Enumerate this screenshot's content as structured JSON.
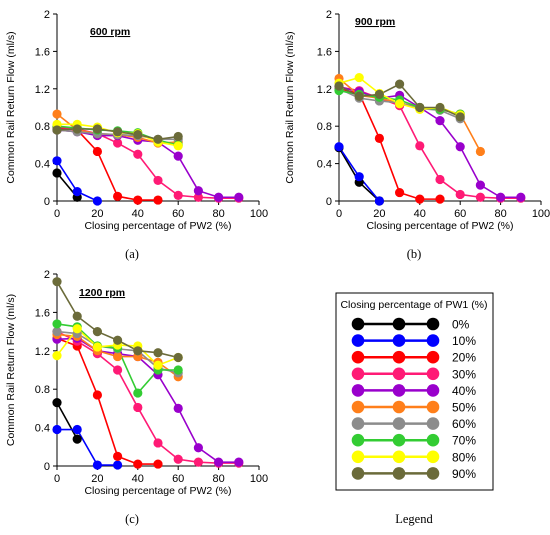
{
  "chart_data": [
    {
      "type": "line",
      "panel_label": "600 rpm",
      "caption": "(a)",
      "xlabel": "Closing percentage of PW2 (%)",
      "ylabel": "Common Rail Return Flow (ml/s)",
      "xlim": [
        0,
        100
      ],
      "ylim": [
        0,
        2
      ],
      "xticks": [
        "0",
        "20",
        "40",
        "60",
        "80",
        "100"
      ],
      "yticks": [
        "0",
        "0.4",
        "0.8",
        "1.2",
        "1.6",
        "2"
      ],
      "series": [
        {
          "name": "0%",
          "x": [
            0,
            10
          ],
          "y": [
            0.3,
            0.04
          ]
        },
        {
          "name": "10%",
          "x": [
            0,
            10,
            20
          ],
          "y": [
            0.43,
            0.1,
            0.0
          ]
        },
        {
          "name": "20%",
          "x": [
            0,
            10,
            20,
            30,
            40,
            50
          ],
          "y": [
            0.78,
            0.76,
            0.53,
            0.05,
            0.01,
            0.01
          ]
        },
        {
          "name": "30%",
          "x": [
            0,
            10,
            20,
            30,
            40,
            50,
            60,
            70,
            80,
            90
          ],
          "y": [
            0.79,
            0.77,
            0.72,
            0.62,
            0.5,
            0.22,
            0.06,
            0.04,
            0.03,
            0.03
          ]
        },
        {
          "name": "40%",
          "x": [
            0,
            10,
            20,
            30,
            40,
            50,
            60,
            70,
            80,
            90
          ],
          "y": [
            0.76,
            0.74,
            0.7,
            0.7,
            0.65,
            0.63,
            0.48,
            0.11,
            0.04,
            0.04
          ]
        },
        {
          "name": "50%",
          "x": [
            0,
            10,
            20,
            30,
            40,
            50,
            60
          ],
          "y": [
            0.93,
            0.76,
            0.72,
            0.71,
            0.68,
            0.62,
            0.63
          ]
        },
        {
          "name": "60%",
          "x": [
            0,
            10,
            20,
            30,
            40,
            50,
            60
          ],
          "y": [
            0.76,
            0.74,
            0.72,
            0.71,
            0.7,
            0.66,
            0.66
          ]
        },
        {
          "name": "70%",
          "x": [
            0,
            10,
            20,
            30,
            40,
            50,
            60
          ],
          "y": [
            0.8,
            0.78,
            0.76,
            0.75,
            0.73,
            0.65,
            0.6
          ]
        },
        {
          "name": "80%",
          "x": [
            0,
            10,
            20,
            30,
            40,
            50,
            60
          ],
          "y": [
            0.82,
            0.82,
            0.79,
            0.73,
            0.72,
            0.63,
            0.59
          ]
        },
        {
          "name": "90%",
          "x": [
            0,
            10,
            20,
            30,
            40,
            50,
            60
          ],
          "y": [
            0.76,
            0.77,
            0.77,
            0.74,
            0.71,
            0.66,
            0.69
          ]
        }
      ]
    },
    {
      "type": "line",
      "panel_label": "900 rpm",
      "caption": "(b)",
      "xlabel": "Closing percentage of PW2 (%)",
      "ylabel": "Common Rail Return Flow (ml/s)",
      "xlim": [
        0,
        100
      ],
      "ylim": [
        0,
        2
      ],
      "xticks": [
        "0",
        "20",
        "40",
        "60",
        "80",
        "100"
      ],
      "yticks": [
        "0",
        "0.4",
        "0.8",
        "1.2",
        "1.6",
        "2"
      ],
      "series": [
        {
          "name": "0%",
          "x": [
            0,
            10,
            20
          ],
          "y": [
            0.57,
            0.2,
            0.0
          ]
        },
        {
          "name": "10%",
          "x": [
            0,
            10,
            20
          ],
          "y": [
            0.58,
            0.26,
            0.0
          ]
        },
        {
          "name": "20%",
          "x": [
            0,
            10,
            20,
            30,
            40,
            50
          ],
          "y": [
            1.2,
            1.15,
            0.67,
            0.09,
            0.02,
            0.02
          ]
        },
        {
          "name": "30%",
          "x": [
            0,
            10,
            20,
            30,
            40,
            50,
            60,
            70,
            80,
            90
          ],
          "y": [
            1.22,
            1.18,
            1.1,
            1.02,
            0.59,
            0.23,
            0.07,
            0.04,
            0.03,
            0.03
          ]
        },
        {
          "name": "40%",
          "x": [
            0,
            10,
            20,
            30,
            40,
            50,
            60,
            70,
            80,
            90
          ],
          "y": [
            1.22,
            1.17,
            1.1,
            1.13,
            1.0,
            0.86,
            0.58,
            0.17,
            0.04,
            0.04
          ]
        },
        {
          "name": "50%",
          "x": [
            0,
            10,
            20,
            30,
            40,
            50,
            60,
            70
          ],
          "y": [
            1.31,
            1.13,
            1.1,
            1.05,
            1.0,
            0.98,
            0.93,
            0.53
          ]
        },
        {
          "name": "60%",
          "x": [
            0,
            10,
            20,
            30,
            40,
            50,
            60
          ],
          "y": [
            1.2,
            1.1,
            1.07,
            1.05,
            0.99,
            0.97,
            0.88
          ]
        },
        {
          "name": "70%",
          "x": [
            0,
            10,
            20,
            30,
            40,
            50,
            60
          ],
          "y": [
            1.18,
            1.14,
            1.11,
            1.08,
            1.0,
            0.98,
            0.93
          ]
        },
        {
          "name": "80%",
          "x": [
            0,
            10,
            20,
            30,
            40,
            50,
            60
          ],
          "y": [
            1.26,
            1.32,
            1.15,
            1.04,
            0.98,
            1.0,
            0.92
          ]
        },
        {
          "name": "90%",
          "x": [
            0,
            10,
            20,
            30,
            40,
            50,
            60
          ],
          "y": [
            1.23,
            1.12,
            1.14,
            1.25,
            1.0,
            1.0,
            0.9
          ]
        }
      ]
    },
    {
      "type": "line",
      "panel_label": "1200 rpm",
      "caption": "(c)",
      "xlabel": "Closing percentage of PW2 (%)",
      "ylabel": "Common Rail Return Flow (ml/s)",
      "xlim": [
        0,
        100
      ],
      "ylim": [
        0,
        2
      ],
      "xticks": [
        "0",
        "20",
        "40",
        "60",
        "80",
        "100"
      ],
      "yticks": [
        "0",
        "0.4",
        "0.8",
        "1.2",
        "1.6",
        "2"
      ],
      "series": [
        {
          "name": "0%",
          "x": [
            0,
            10
          ],
          "y": [
            0.66,
            0.28
          ]
        },
        {
          "name": "10%",
          "x": [
            0,
            10,
            20,
            30
          ],
          "y": [
            0.38,
            0.38,
            0.01,
            0.01
          ]
        },
        {
          "name": "20%",
          "x": [
            0,
            10,
            20,
            30,
            40,
            50
          ],
          "y": [
            1.33,
            1.25,
            0.74,
            0.1,
            0.02,
            0.02
          ]
        },
        {
          "name": "30%",
          "x": [
            0,
            10,
            20,
            30,
            40,
            50,
            60,
            70,
            80,
            90
          ],
          "y": [
            1.4,
            1.3,
            1.17,
            1.0,
            0.61,
            0.24,
            0.07,
            0.04,
            0.03,
            0.03
          ]
        },
        {
          "name": "40%",
          "x": [
            0,
            10,
            20,
            30,
            40,
            50,
            60,
            70,
            80,
            90
          ],
          "y": [
            1.32,
            1.33,
            1.2,
            1.17,
            1.14,
            0.95,
            0.6,
            0.19,
            0.04,
            0.04
          ]
        },
        {
          "name": "50%",
          "x": [
            0,
            10,
            20,
            30,
            40,
            50,
            60
          ],
          "y": [
            1.37,
            1.35,
            1.2,
            1.14,
            1.14,
            1.08,
            0.93
          ]
        },
        {
          "name": "60%",
          "x": [
            0,
            10,
            20,
            30,
            40,
            50,
            60
          ],
          "y": [
            1.4,
            1.38,
            1.25,
            1.22,
            1.2,
            1.02,
            0.97
          ]
        },
        {
          "name": "70%",
          "x": [
            0,
            10,
            20,
            30,
            40,
            50,
            60
          ],
          "y": [
            1.48,
            1.45,
            1.25,
            1.23,
            0.76,
            1.0,
            1.0
          ]
        },
        {
          "name": "80%",
          "x": [
            0,
            10,
            20,
            30,
            40,
            50,
            60
          ],
          "y": [
            1.15,
            1.43,
            1.24,
            1.26,
            1.25,
            1.05,
            1.13
          ]
        },
        {
          "name": "90%",
          "x": [
            0,
            10,
            20,
            30,
            40,
            50,
            60
          ],
          "y": [
            1.92,
            1.56,
            1.4,
            1.31,
            1.2,
            1.18,
            1.13
          ]
        }
      ]
    }
  ],
  "legend": {
    "title": "Closing percentage of PW1 (%)",
    "caption": "Legend",
    "entries": [
      {
        "label": "0%",
        "color": "#000000"
      },
      {
        "label": "10%",
        "color": "#0000ff"
      },
      {
        "label": "20%",
        "color": "#ff0000"
      },
      {
        "label": "30%",
        "color": "#ff1a75"
      },
      {
        "label": "40%",
        "color": "#9900cc"
      },
      {
        "label": "50%",
        "color": "#ff7f1a"
      },
      {
        "label": "60%",
        "color": "#8c8c8c"
      },
      {
        "label": "70%",
        "color": "#33cc33"
      },
      {
        "label": "80%",
        "color": "#ffff00"
      },
      {
        "label": "90%",
        "color": "#6b6b3a"
      }
    ]
  }
}
